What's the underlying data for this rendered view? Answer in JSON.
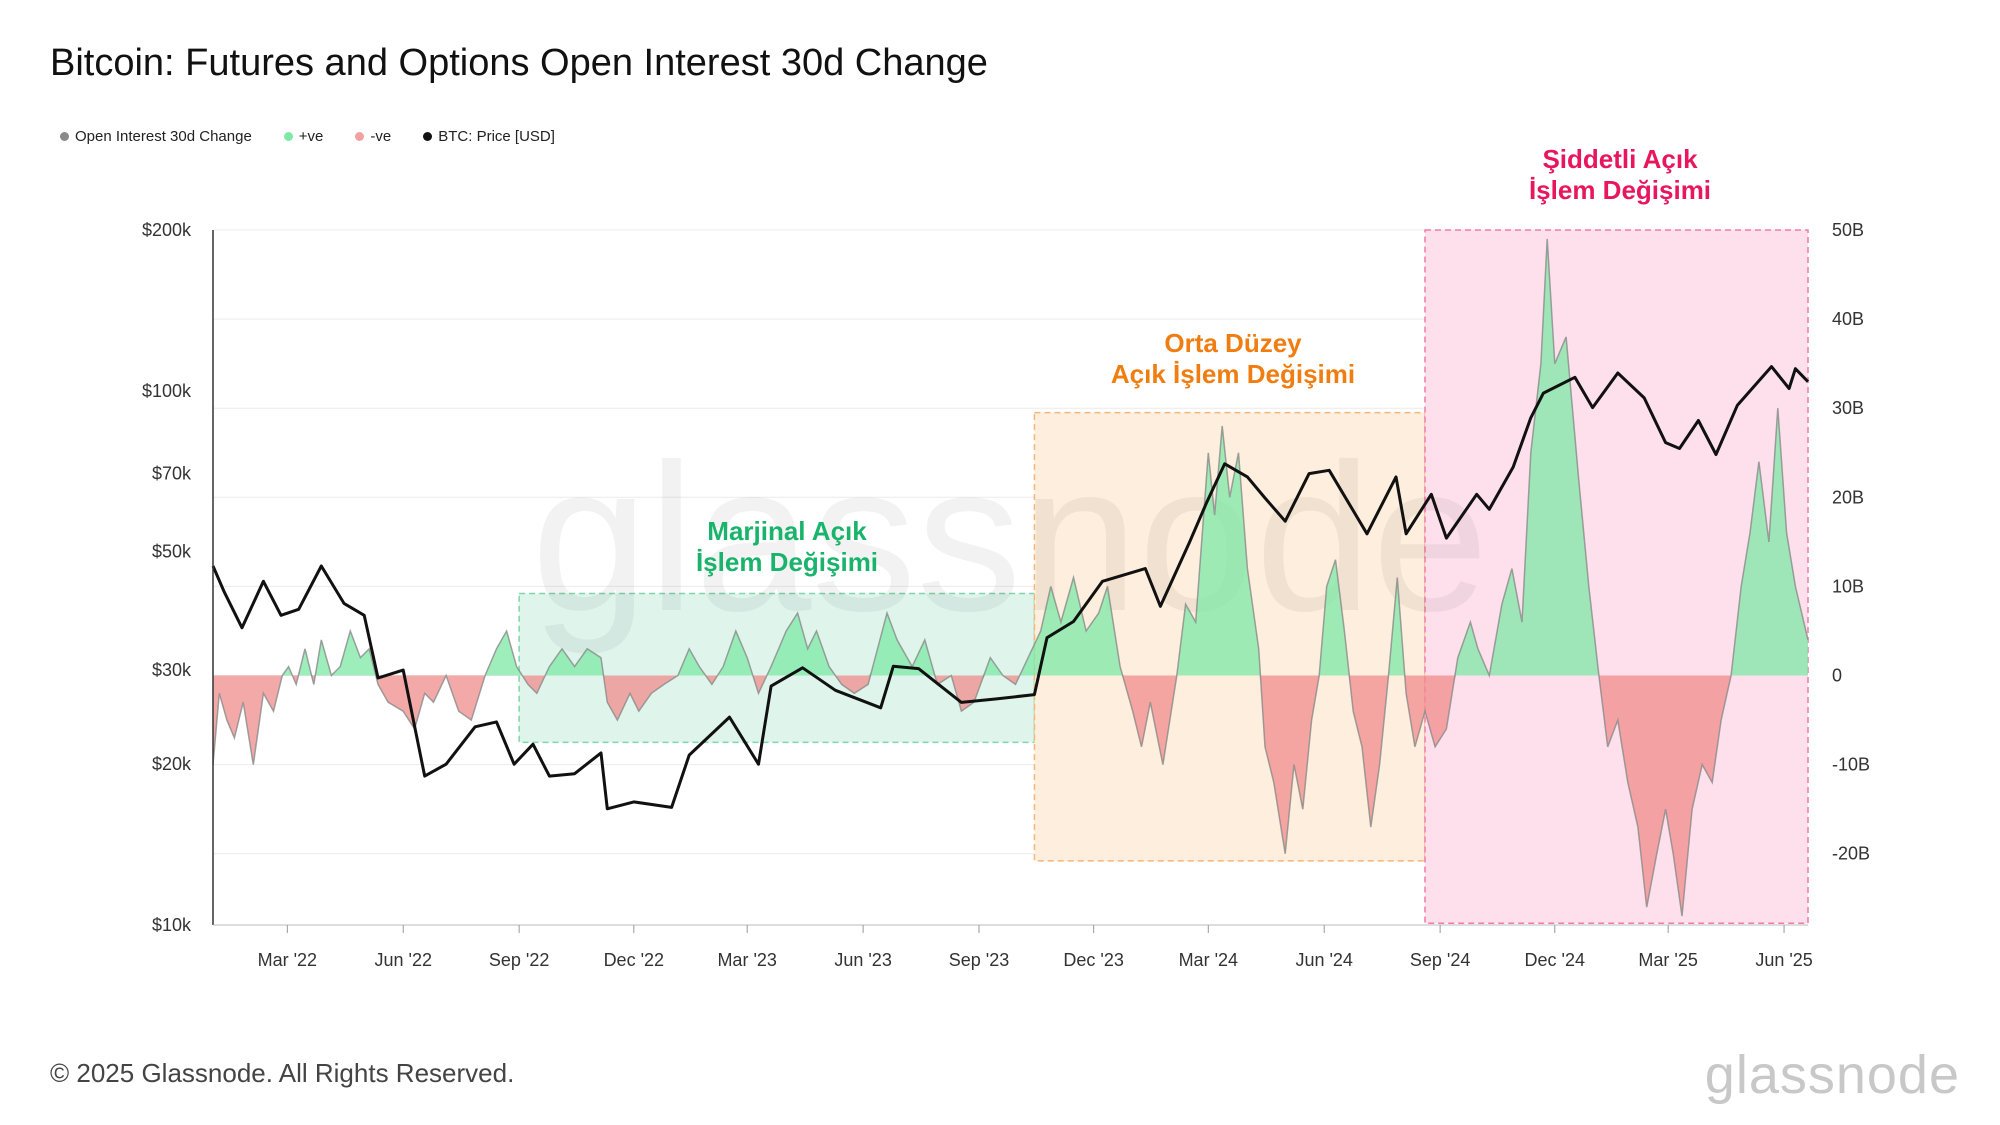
{
  "title": "Bitcoin: Futures and Options Open Interest 30d Change",
  "legend": [
    {
      "label": "Open Interest 30d Change",
      "color": "#8a8a8a"
    },
    {
      "label": "+ve",
      "color": "#7ee8a6"
    },
    {
      "label": "-ve",
      "color": "#f2a0a0"
    },
    {
      "label": "BTC: Price [USD]",
      "color": "#111111"
    }
  ],
  "footer": "© 2025 Glassnode. All Rights Reserved.",
  "brand": "glassnode",
  "watermark": "glassnode",
  "chart_data": {
    "type": "area",
    "x_axis": {
      "ticks": [
        "Mar '22",
        "Jun '22",
        "Sep '22",
        "Dec '22",
        "Mar '23",
        "Jun '23",
        "Sep '23",
        "Dec '23",
        "Mar '24",
        "Jun '24",
        "Sep '24",
        "Dec '24",
        "Mar '25",
        "Jun '25"
      ],
      "range": [
        "2022-01-01",
        "2025-06-20"
      ]
    },
    "left_axis": {
      "scale": "log",
      "ticks": [
        "$10k",
        "$20k",
        "$30k",
        "$50k",
        "$70k",
        "$100k",
        "$200k"
      ],
      "tick_values": [
        10000,
        20000,
        30000,
        50000,
        70000,
        100000,
        200000
      ],
      "range": [
        10000,
        200000
      ]
    },
    "right_axis": {
      "scale": "linear",
      "ticks": [
        "-20B",
        "-10B",
        "0",
        "10B",
        "20B",
        "30B",
        "40B",
        "50B"
      ],
      "tick_values": [
        -20,
        -10,
        0,
        10,
        20,
        30,
        40,
        50
      ],
      "range": [
        -28,
        50
      ]
    },
    "zones": [
      {
        "label_lines": [
          "Marjinal Açık",
          "İşlem Değişimi"
        ],
        "start": "2022-09-01",
        "end": "2023-10-15",
        "ymin": -7.5,
        "ymax": 9.2,
        "fill": "#dff5ec",
        "border": "#7fd6aa",
        "text_color": "#19b36b"
      },
      {
        "label_lines": [
          "Orta Düzey",
          "Açık İşlem Değişimi"
        ],
        "start": "2023-10-15",
        "end": "2024-08-20",
        "ymin": -20.8,
        "ymax": 29.5,
        "fill": "#fdeedd",
        "border": "#f5b67a",
        "text_color": "#f07d10"
      },
      {
        "label_lines": [
          "Şiddetli Açık",
          "İşlem Değişimi"
        ],
        "start": "2024-08-20",
        "end": "2025-06-20",
        "ymin": -27.8,
        "ymax": 50,
        "fill": "#fde0ec",
        "border": "#f27aa8",
        "text_color": "#e8175d"
      }
    ],
    "series": [
      {
        "name": "BTC: Price [USD]",
        "axis": "left",
        "color": "#111111",
        "points": [
          [
            "2022-01-01",
            47000
          ],
          [
            "2022-01-10",
            42000
          ],
          [
            "2022-01-24",
            36000
          ],
          [
            "2022-02-10",
            44000
          ],
          [
            "2022-02-24",
            38000
          ],
          [
            "2022-03-10",
            39000
          ],
          [
            "2022-03-28",
            47000
          ],
          [
            "2022-04-15",
            40000
          ],
          [
            "2022-05-01",
            38000
          ],
          [
            "2022-05-12",
            29000
          ],
          [
            "2022-06-01",
            30000
          ],
          [
            "2022-06-18",
            19000
          ],
          [
            "2022-07-05",
            20000
          ],
          [
            "2022-07-28",
            23500
          ],
          [
            "2022-08-14",
            24000
          ],
          [
            "2022-08-28",
            20000
          ],
          [
            "2022-09-12",
            21800
          ],
          [
            "2022-09-25",
            19000
          ],
          [
            "2022-10-15",
            19200
          ],
          [
            "2022-11-05",
            21000
          ],
          [
            "2022-11-10",
            16500
          ],
          [
            "2022-12-01",
            17000
          ],
          [
            "2022-12-31",
            16600
          ],
          [
            "2023-01-14",
            20800
          ],
          [
            "2023-02-15",
            24500
          ],
          [
            "2023-03-10",
            20000
          ],
          [
            "2023-03-20",
            28000
          ],
          [
            "2023-04-14",
            30300
          ],
          [
            "2023-05-10",
            27500
          ],
          [
            "2023-06-15",
            25500
          ],
          [
            "2023-06-25",
            30500
          ],
          [
            "2023-07-15",
            30200
          ],
          [
            "2023-08-18",
            26100
          ],
          [
            "2023-09-15",
            26500
          ],
          [
            "2023-10-15",
            27000
          ],
          [
            "2023-10-25",
            34500
          ],
          [
            "2023-11-15",
            37000
          ],
          [
            "2023-12-08",
            44000
          ],
          [
            "2024-01-11",
            46500
          ],
          [
            "2024-01-23",
            39500
          ],
          [
            "2024-02-15",
            52000
          ],
          [
            "2024-02-29",
            62000
          ],
          [
            "2024-03-14",
            73000
          ],
          [
            "2024-04-01",
            69000
          ],
          [
            "2024-04-15",
            63000
          ],
          [
            "2024-05-01",
            57000
          ],
          [
            "2024-05-20",
            70000
          ],
          [
            "2024-06-05",
            71000
          ],
          [
            "2024-07-05",
            54000
          ],
          [
            "2024-07-28",
            69000
          ],
          [
            "2024-08-05",
            54000
          ],
          [
            "2024-08-25",
            64000
          ],
          [
            "2024-09-06",
            53000
          ],
          [
            "2024-09-30",
            64000
          ],
          [
            "2024-10-10",
            60000
          ],
          [
            "2024-10-29",
            72000
          ],
          [
            "2024-11-12",
            89000
          ],
          [
            "2024-11-22",
            99000
          ],
          [
            "2024-12-17",
            106000
          ],
          [
            "2024-12-31",
            93000
          ],
          [
            "2025-01-20",
            108000
          ],
          [
            "2025-02-10",
            97000
          ],
          [
            "2025-02-27",
            80000
          ],
          [
            "2025-03-10",
            78000
          ],
          [
            "2025-03-25",
            88000
          ],
          [
            "2025-04-08",
            76000
          ],
          [
            "2025-04-25",
            94000
          ],
          [
            "2025-05-22",
            111000
          ],
          [
            "2025-06-05",
            101000
          ],
          [
            "2025-06-10",
            110000
          ],
          [
            "2025-06-20",
            104000
          ]
        ]
      },
      {
        "name": "Open Interest 30d Change",
        "axis": "right",
        "unit": "B",
        "points": [
          [
            "2022-01-01",
            -10
          ],
          [
            "2022-01-06",
            -2
          ],
          [
            "2022-01-12",
            -5
          ],
          [
            "2022-01-18",
            -7
          ],
          [
            "2022-01-25",
            -3
          ],
          [
            "2022-02-02",
            -10
          ],
          [
            "2022-02-10",
            -2
          ],
          [
            "2022-02-18",
            -4
          ],
          [
            "2022-02-25",
            0
          ],
          [
            "2022-03-02",
            1
          ],
          [
            "2022-03-08",
            -1
          ],
          [
            "2022-03-15",
            3
          ],
          [
            "2022-03-22",
            -1
          ],
          [
            "2022-03-28",
            4
          ],
          [
            "2022-04-05",
            0
          ],
          [
            "2022-04-12",
            1
          ],
          [
            "2022-04-20",
            5
          ],
          [
            "2022-04-28",
            2
          ],
          [
            "2022-05-05",
            3
          ],
          [
            "2022-05-12",
            -1
          ],
          [
            "2022-05-20",
            -3
          ],
          [
            "2022-06-01",
            -4
          ],
          [
            "2022-06-10",
            -6
          ],
          [
            "2022-06-18",
            -2
          ],
          [
            "2022-06-25",
            -3
          ],
          [
            "2022-07-05",
            0
          ],
          [
            "2022-07-15",
            -4
          ],
          [
            "2022-07-25",
            -5
          ],
          [
            "2022-08-05",
            0
          ],
          [
            "2022-08-14",
            3
          ],
          [
            "2022-08-22",
            5
          ],
          [
            "2022-08-30",
            1
          ],
          [
            "2022-09-08",
            -1
          ],
          [
            "2022-09-15",
            -2
          ],
          [
            "2022-09-25",
            1
          ],
          [
            "2022-10-05",
            3
          ],
          [
            "2022-10-15",
            1
          ],
          [
            "2022-10-25",
            3
          ],
          [
            "2022-11-05",
            2
          ],
          [
            "2022-11-10",
            -3
          ],
          [
            "2022-11-18",
            -5
          ],
          [
            "2022-11-28",
            -2
          ],
          [
            "2022-12-05",
            -4
          ],
          [
            "2022-12-15",
            -2
          ],
          [
            "2022-12-25",
            -1
          ],
          [
            "2023-01-05",
            0
          ],
          [
            "2023-01-14",
            3
          ],
          [
            "2023-01-22",
            1
          ],
          [
            "2023-02-01",
            -1
          ],
          [
            "2023-02-10",
            1
          ],
          [
            "2023-02-20",
            5
          ],
          [
            "2023-03-01",
            2
          ],
          [
            "2023-03-10",
            -2
          ],
          [
            "2023-03-20",
            1
          ],
          [
            "2023-04-01",
            5
          ],
          [
            "2023-04-10",
            7
          ],
          [
            "2023-04-18",
            3
          ],
          [
            "2023-04-25",
            5
          ],
          [
            "2023-05-05",
            1
          ],
          [
            "2023-05-15",
            -1
          ],
          [
            "2023-05-25",
            -2
          ],
          [
            "2023-06-05",
            -1
          ],
          [
            "2023-06-20",
            7
          ],
          [
            "2023-06-28",
            4
          ],
          [
            "2023-07-10",
            1
          ],
          [
            "2023-07-20",
            4
          ],
          [
            "2023-07-30",
            -1
          ],
          [
            "2023-08-10",
            0
          ],
          [
            "2023-08-18",
            -4
          ],
          [
            "2023-08-28",
            -3
          ],
          [
            "2023-09-10",
            2
          ],
          [
            "2023-09-20",
            0
          ],
          [
            "2023-09-30",
            -1
          ],
          [
            "2023-10-10",
            2
          ],
          [
            "2023-10-20",
            5
          ],
          [
            "2023-10-28",
            10
          ],
          [
            "2023-11-05",
            6
          ],
          [
            "2023-11-15",
            11
          ],
          [
            "2023-11-25",
            5
          ],
          [
            "2023-12-05",
            7
          ],
          [
            "2023-12-12",
            10
          ],
          [
            "2023-12-22",
            1
          ],
          [
            "2024-01-01",
            -4
          ],
          [
            "2024-01-08",
            -8
          ],
          [
            "2024-01-15",
            -3
          ],
          [
            "2024-01-25",
            -10
          ],
          [
            "2024-02-05",
            0
          ],
          [
            "2024-02-12",
            8
          ],
          [
            "2024-02-20",
            6
          ],
          [
            "2024-03-01",
            25
          ],
          [
            "2024-03-06",
            18
          ],
          [
            "2024-03-12",
            28
          ],
          [
            "2024-03-18",
            20
          ],
          [
            "2024-03-25",
            25
          ],
          [
            "2024-04-01",
            12
          ],
          [
            "2024-04-10",
            3
          ],
          [
            "2024-04-15",
            -8
          ],
          [
            "2024-04-22",
            -12
          ],
          [
            "2024-05-01",
            -20
          ],
          [
            "2024-05-08",
            -10
          ],
          [
            "2024-05-15",
            -15
          ],
          [
            "2024-05-22",
            -5
          ],
          [
            "2024-05-28",
            0
          ],
          [
            "2024-06-03",
            10
          ],
          [
            "2024-06-10",
            13
          ],
          [
            "2024-06-17",
            5
          ],
          [
            "2024-06-24",
            -4
          ],
          [
            "2024-07-01",
            -8
          ],
          [
            "2024-07-08",
            -17
          ],
          [
            "2024-07-15",
            -10
          ],
          [
            "2024-07-22",
            0
          ],
          [
            "2024-07-29",
            11
          ],
          [
            "2024-08-05",
            -2
          ],
          [
            "2024-08-12",
            -8
          ],
          [
            "2024-08-20",
            -4
          ],
          [
            "2024-08-28",
            -8
          ],
          [
            "2024-09-06",
            -6
          ],
          [
            "2024-09-15",
            2
          ],
          [
            "2024-09-25",
            6
          ],
          [
            "2024-10-01",
            3
          ],
          [
            "2024-10-10",
            0
          ],
          [
            "2024-10-20",
            8
          ],
          [
            "2024-10-28",
            12
          ],
          [
            "2024-11-05",
            6
          ],
          [
            "2024-11-12",
            25
          ],
          [
            "2024-11-20",
            35
          ],
          [
            "2024-11-25",
            49
          ],
          [
            "2024-12-01",
            35
          ],
          [
            "2024-12-10",
            38
          ],
          [
            "2024-12-20",
            22
          ],
          [
            "2024-12-28",
            10
          ],
          [
            "2025-01-05",
            0
          ],
          [
            "2025-01-12",
            -8
          ],
          [
            "2025-01-20",
            -5
          ],
          [
            "2025-01-28",
            -12
          ],
          [
            "2025-02-05",
            -17
          ],
          [
            "2025-02-12",
            -26
          ],
          [
            "2025-02-20",
            -20
          ],
          [
            "2025-02-27",
            -15
          ],
          [
            "2025-03-05",
            -20
          ],
          [
            "2025-03-12",
            -27
          ],
          [
            "2025-03-20",
            -15
          ],
          [
            "2025-03-28",
            -10
          ],
          [
            "2025-04-05",
            -12
          ],
          [
            "2025-04-12",
            -5
          ],
          [
            "2025-04-20",
            0
          ],
          [
            "2025-04-28",
            10
          ],
          [
            "2025-05-05",
            16
          ],
          [
            "2025-05-12",
            24
          ],
          [
            "2025-05-20",
            15
          ],
          [
            "2025-05-27",
            30
          ],
          [
            "2025-06-03",
            16
          ],
          [
            "2025-06-10",
            10
          ],
          [
            "2025-06-20",
            4
          ]
        ]
      }
    ]
  }
}
